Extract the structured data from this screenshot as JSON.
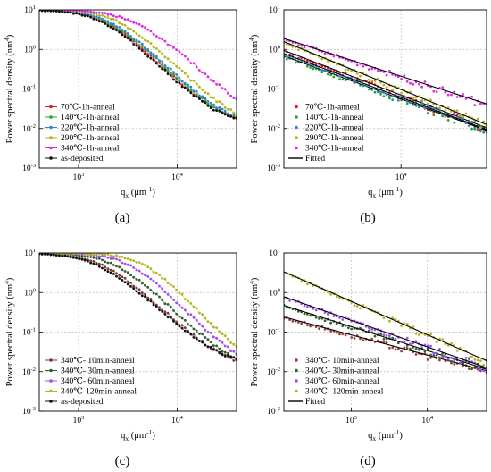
{
  "chart_data": [
    {
      "type": "scatter",
      "panel_label": "(a)",
      "xlabel_main": "q",
      "xlabel_sub": "x",
      "xlabel_unit": " (μm",
      "xlabel_exp": "-1",
      "xlabel_close": ")",
      "ylabel": "Power spectral density (nm",
      "ylabel_exp": "4",
      "ylabel_close": ")",
      "xscale": "log",
      "yscale": "log",
      "xlim": [
        400,
        40000
      ],
      "ylim": [
        0.001,
        10
      ],
      "xticks": [
        {
          "v": 1000,
          "label": "10",
          "exp": "3"
        },
        {
          "v": 10000,
          "label": "10",
          "exp": "4"
        }
      ],
      "yticks": [
        {
          "v": 0.001,
          "label": "10",
          "exp": "-3"
        },
        {
          "v": 0.01,
          "label": "10",
          "exp": "-2"
        },
        {
          "v": 0.1,
          "label": "10",
          "exp": "-1"
        },
        {
          "v": 1,
          "label": "10",
          "exp": "0"
        },
        {
          "v": 10,
          "label": "10",
          "exp": "1"
        }
      ],
      "grid": true,
      "legend_position": "lower-left",
      "series": [
        {
          "name": "70℃-1h-anneal",
          "color": "#e8191f",
          "knee": 1800,
          "plateau": 10,
          "floor": 0.012,
          "slope": 2.4
        },
        {
          "name": "140℃-1h-anneal",
          "color": "#2aa52a",
          "knee": 1900,
          "plateau": 10,
          "floor": 0.012,
          "slope": 2.4
        },
        {
          "name": "220℃-1h-anneal",
          "color": "#2e83d6",
          "knee": 2000,
          "plateau": 10,
          "floor": 0.012,
          "slope": 2.4
        },
        {
          "name": "290℃-1h-anneal",
          "color": "#b5b51c",
          "knee": 2500,
          "plateau": 10,
          "floor": 0.011,
          "slope": 2.4
        },
        {
          "name": "340℃-1h-anneal",
          "color": "#e02be0",
          "knee": 3500,
          "plateau": 10,
          "floor": 0.009,
          "slope": 2.2
        },
        {
          "name": "as-deposited",
          "color": "#111111",
          "knee": 1700,
          "plateau": 10,
          "floor": 0.013,
          "slope": 2.4
        }
      ]
    },
    {
      "type": "scatter",
      "panel_label": "(b)",
      "xlabel_main": "q",
      "xlabel_sub": "x",
      "xlabel_unit": " (μm",
      "xlabel_exp": "-1",
      "xlabel_close": ")",
      "ylabel": "Power spectral density (nm",
      "ylabel_exp": "4",
      "ylabel_close": ")",
      "xscale": "log",
      "yscale": "log",
      "xlim": [
        1500,
        40000
      ],
      "ylim": [
        0.001,
        10
      ],
      "xticks": [
        {
          "v": 10000,
          "label": "10",
          "exp": "4"
        }
      ],
      "yticks": [
        {
          "v": 0.001,
          "label": "10",
          "exp": "-3"
        },
        {
          "v": 0.01,
          "label": "10",
          "exp": "-2"
        },
        {
          "v": 0.1,
          "label": "10",
          "exp": "-1"
        },
        {
          "v": 1,
          "label": "10",
          "exp": "0"
        },
        {
          "v": 10,
          "label": "10",
          "exp": "1"
        }
      ],
      "grid": true,
      "legend_position": "lower-left",
      "fit_label": "Fitted",
      "series": [
        {
          "name": "70℃-1h-anneal",
          "color": "#e8191f",
          "y0": 0.9,
          "y1": 0.01
        },
        {
          "name": "140℃-1h-anneal",
          "color": "#2aa52a",
          "y0": 0.65,
          "y1": 0.0085
        },
        {
          "name": "220℃-1h-anneal",
          "color": "#2e83d6",
          "y0": 0.75,
          "y1": 0.009
        },
        {
          "name": "290℃-1h-anneal",
          "color": "#b5b51c",
          "y0": 1.5,
          "y1": 0.012
        },
        {
          "name": "340℃-1h-anneal",
          "color": "#e02be0",
          "y0": 1.8,
          "y1": 0.04
        }
      ]
    },
    {
      "type": "scatter",
      "panel_label": "(c)",
      "xlabel_main": "q",
      "xlabel_sub": "x",
      "xlabel_unit": " (μm",
      "xlabel_exp": "-1",
      "xlabel_close": ")",
      "ylabel": "Power spectral density (nm",
      "ylabel_exp": "4",
      "ylabel_close": ")",
      "xscale": "log",
      "yscale": "log",
      "xlim": [
        400,
        40000
      ],
      "ylim": [
        0.001,
        10
      ],
      "xticks": [
        {
          "v": 1000,
          "label": "10",
          "exp": "3"
        },
        {
          "v": 10000,
          "label": "10",
          "exp": "4"
        }
      ],
      "yticks": [
        {
          "v": 0.001,
          "label": "10",
          "exp": "-3"
        },
        {
          "v": 0.01,
          "label": "10",
          "exp": "-2"
        },
        {
          "v": 0.1,
          "label": "10",
          "exp": "-1"
        },
        {
          "v": 1,
          "label": "10",
          "exp": "0"
        },
        {
          "v": 10,
          "label": "10",
          "exp": "1"
        }
      ],
      "grid": true,
      "legend_position": "lower-left",
      "series": [
        {
          "name": "340℃- 10min-anneal",
          "color": "#7a3b3b",
          "knee": 1700,
          "plateau": 10,
          "floor": 0.012,
          "slope": 2.3
        },
        {
          "name": "340℃- 30min-anneal",
          "color": "#2f5f2f",
          "knee": 2300,
          "plateau": 10,
          "floor": 0.011,
          "slope": 2.4
        },
        {
          "name": "340℃- 60min-anneal",
          "color": "#9d4df0",
          "knee": 3200,
          "plateau": 10,
          "floor": 0.01,
          "slope": 2.5
        },
        {
          "name": "340℃-120min-anneal",
          "color": "#b5b51c",
          "knee": 4500,
          "plateau": 10,
          "floor": 0.009,
          "slope": 2.6
        },
        {
          "name": "as-deposited",
          "color": "#111111",
          "knee": 1500,
          "plateau": 10,
          "floor": 0.013,
          "slope": 2.2
        }
      ]
    },
    {
      "type": "scatter",
      "panel_label": "(d)",
      "xlabel_main": "q",
      "xlabel_sub": "x",
      "xlabel_unit": " (μm",
      "xlabel_exp": "-1",
      "xlabel_close": ")",
      "ylabel": "Power spectral density (nm",
      "ylabel_exp": "4",
      "ylabel_close": ")",
      "xscale": "log",
      "yscale": "log",
      "xlim": [
        130,
        60000
      ],
      "ylim": [
        0.001,
        10
      ],
      "xticks": [
        {
          "v": 1000,
          "label": "10",
          "exp": "3"
        },
        {
          "v": 10000,
          "label": "10",
          "exp": "4"
        }
      ],
      "yticks": [
        {
          "v": 0.001,
          "label": "10",
          "exp": "-3"
        },
        {
          "v": 0.01,
          "label": "10",
          "exp": "-2"
        },
        {
          "v": 0.1,
          "label": "10",
          "exp": "-1"
        },
        {
          "v": 1,
          "label": "10",
          "exp": "0"
        },
        {
          "v": 10,
          "label": "10",
          "exp": "1"
        }
      ],
      "grid": true,
      "legend_position": "lower-left",
      "fit_label": "Fitted",
      "series": [
        {
          "name": "340℃- 10min-anneal",
          "color": "#a0403a",
          "y0": 0.23,
          "y1": 0.01
        },
        {
          "name": "340℃- 30min-anneal",
          "color": "#2f5f2f",
          "y0": 0.45,
          "y1": 0.011
        },
        {
          "name": "340℃- 60min-anneal",
          "color": "#9d4df0",
          "y0": 0.75,
          "y1": 0.012
        },
        {
          "name": "340℃- 120min-anneal",
          "color": "#b5b51c",
          "y0": 3.2,
          "y1": 0.018
        }
      ]
    }
  ]
}
